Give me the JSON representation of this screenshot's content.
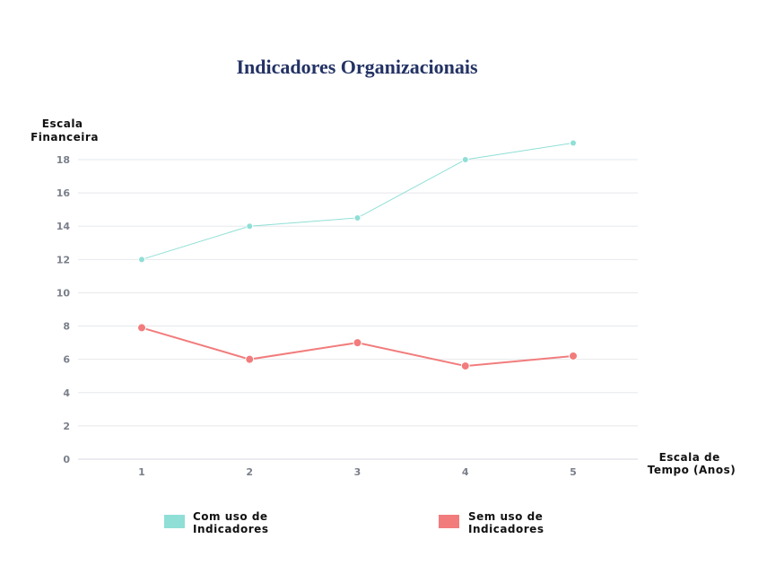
{
  "chart_data": {
    "type": "line",
    "title": "Indicadores Organizacionais",
    "ylabel_lines": [
      "Escala",
      "Financeira"
    ],
    "xlabel_lines": [
      "Escala de",
      "Tempo (Anos)"
    ],
    "categories": [
      "1",
      "2",
      "3",
      "4",
      "5"
    ],
    "yticks": [
      0,
      2,
      4,
      6,
      8,
      10,
      12,
      14,
      16,
      18
    ],
    "ylim": [
      0,
      18
    ],
    "grid": true,
    "legend_position": "bottom",
    "series": [
      {
        "name_lines": [
          "Com uso de",
          "Indicadores"
        ],
        "color": "#8fdfd6",
        "values": [
          12,
          14,
          14.5,
          18,
          19
        ]
      },
      {
        "name_lines": [
          "Sem uso de",
          "Indicadores"
        ],
        "color": "#f27c7c",
        "values": [
          7.9,
          6.0,
          7.0,
          5.6,
          6.2
        ]
      }
    ]
  }
}
